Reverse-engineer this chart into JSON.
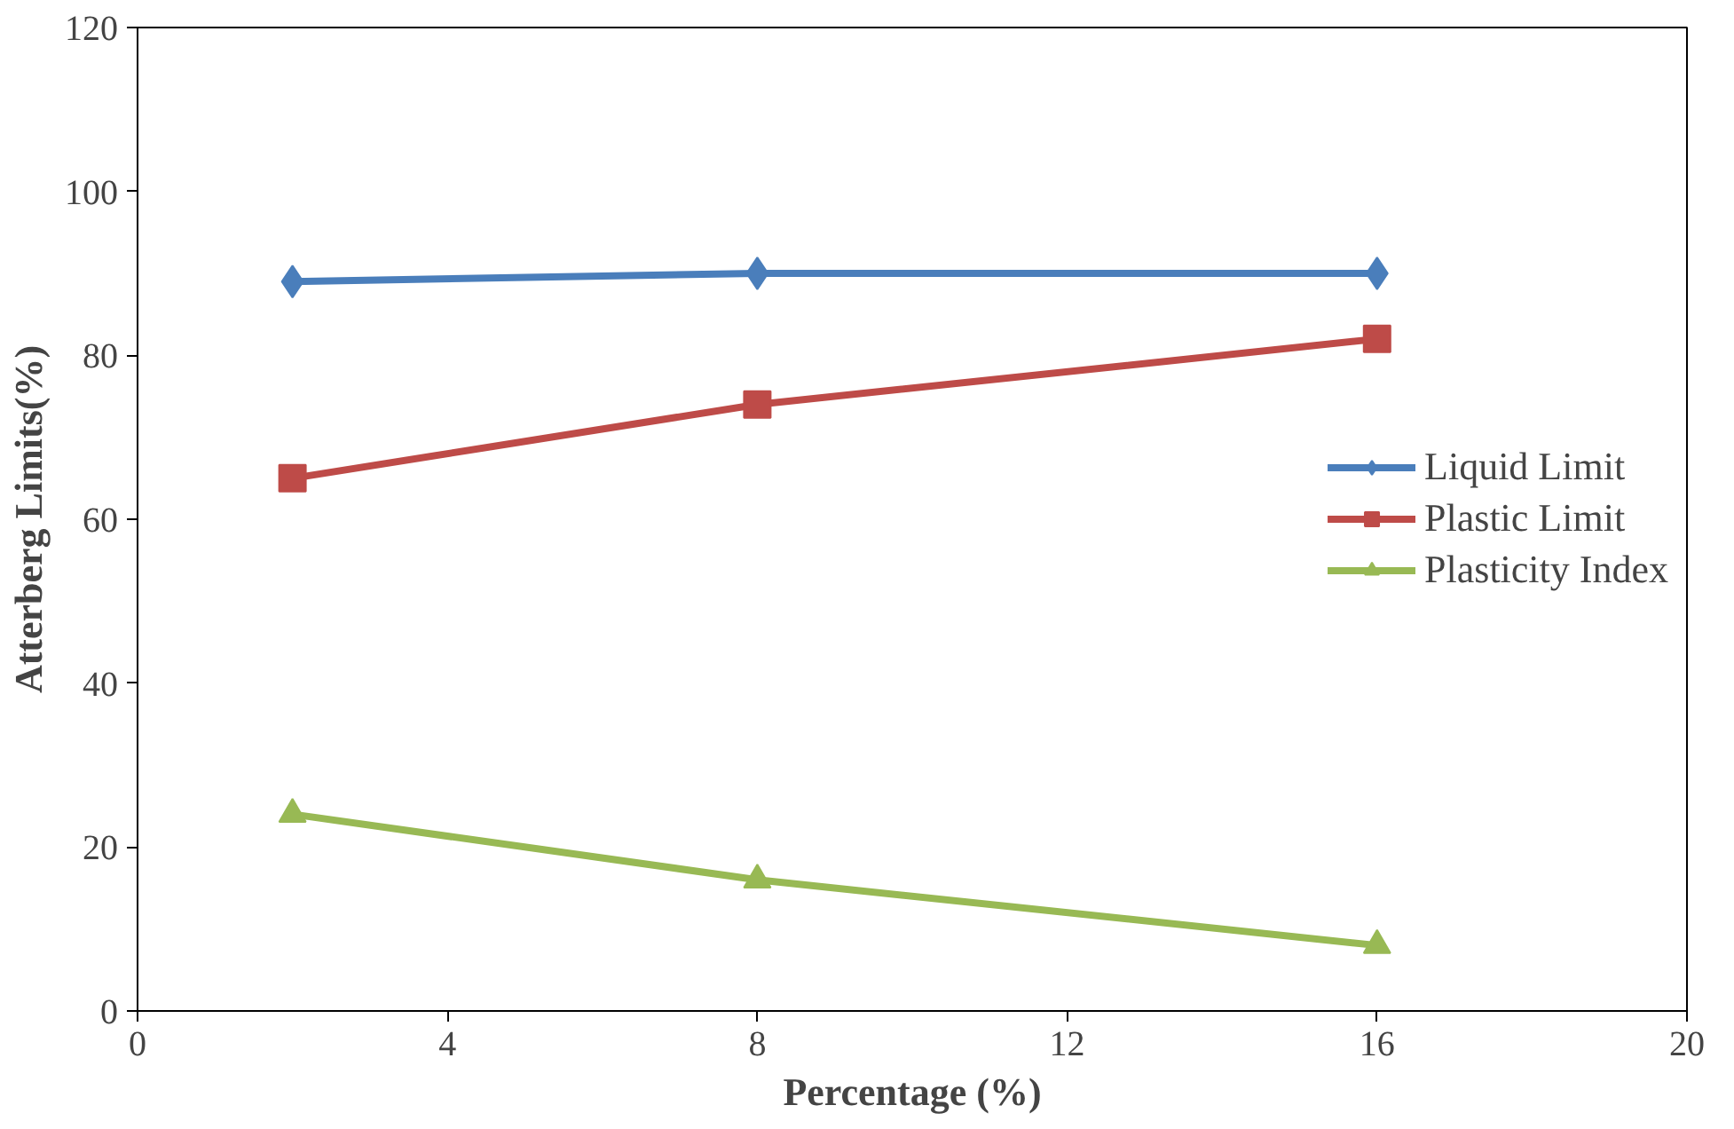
{
  "chart_data": {
    "type": "line",
    "xlabel": "Percentage (%)",
    "ylabel": "Atterberg Limits(%)",
    "x": [
      2,
      8,
      16
    ],
    "series": [
      {
        "name": "Liquid Limit",
        "color": "#4a7ebb",
        "values": [
          89,
          90,
          90
        ],
        "marker": "diamond"
      },
      {
        "name": "Plastic Limit",
        "color": "#be4b48",
        "values": [
          65,
          74,
          82
        ],
        "marker": "square"
      },
      {
        "name": "Plasticity Index",
        "color": "#98b954",
        "values": [
          24,
          16,
          8
        ],
        "marker": "triangle"
      }
    ],
    "xlim": [
      0,
      20
    ],
    "xticks": [
      0,
      4,
      8,
      12,
      16,
      20
    ],
    "ylim": [
      0,
      120
    ],
    "yticks": [
      0,
      20,
      40,
      60,
      80,
      100,
      120
    ],
    "grid": false,
    "legend": "right",
    "line_style": "solid"
  }
}
